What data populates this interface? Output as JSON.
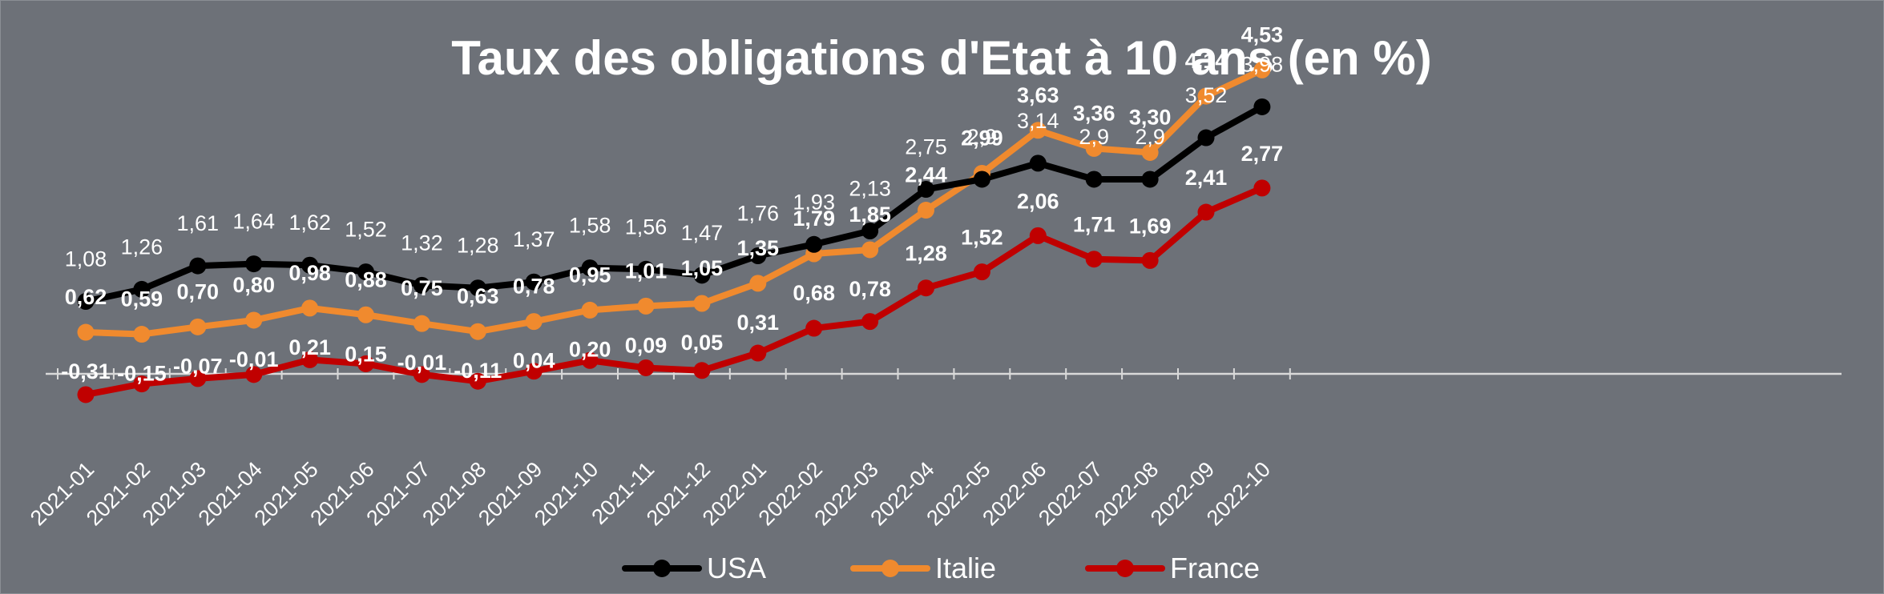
{
  "chart_data": {
    "type": "line",
    "title": "Taux des obligations d'Etat à 10 ans (en %)",
    "xlabel": "",
    "ylabel": "",
    "ylim": [
      -1.2,
      5.5
    ],
    "grid": false,
    "legend_position": "bottom",
    "categories": [
      "2021-01",
      "2021-02",
      "2021-03",
      "2021-04",
      "2021-05",
      "2021-06",
      "2021-07",
      "2021-08",
      "2021-09",
      "2021-10",
      "2021-11",
      "2021-12",
      "2022-01",
      "2022-02",
      "2022-03",
      "2022-04",
      "2022-05",
      "2022-06",
      "2022-07",
      "2022-08",
      "2022-09",
      "2022-10"
    ],
    "series": [
      {
        "name": "USA",
        "color": "#000000",
        "values": [
          1.08,
          1.26,
          1.61,
          1.64,
          1.62,
          1.52,
          1.32,
          1.28,
          1.37,
          1.58,
          1.56,
          1.47,
          1.76,
          1.93,
          2.13,
          2.75,
          2.9,
          3.14,
          2.9,
          2.9,
          3.52,
          3.98
        ],
        "labels": [
          "1,08",
          "1,26",
          "1,61",
          "1,64",
          "1,62",
          "1,52",
          "1,32",
          "1,28",
          "1,37",
          "1,58",
          "1,56",
          "1,47",
          "1,76",
          "1,93",
          "2,13",
          "2,75",
          "2,9",
          "3,14",
          "2,9",
          "2,9",
          "3,52",
          "3,98"
        ]
      },
      {
        "name": "Italie",
        "color": "#f08a2e",
        "values": [
          0.62,
          0.59,
          0.7,
          0.8,
          0.98,
          0.88,
          0.75,
          0.63,
          0.78,
          0.95,
          1.01,
          1.05,
          1.35,
          1.79,
          1.85,
          2.44,
          2.99,
          3.63,
          3.36,
          3.3,
          4.14,
          4.53
        ],
        "labels": [
          "0,62",
          "0,59",
          "0,70",
          "0,80",
          "0,98",
          "0,88",
          "0,75",
          "0,63",
          "0,78",
          "0,95",
          "1,01",
          "1,05",
          "1,35",
          "1,79",
          "1,85",
          "2,44",
          "2,99",
          "3,63",
          "3,36",
          "3,30",
          "4,14",
          "4,53"
        ]
      },
      {
        "name": "France",
        "color": "#c00000",
        "values": [
          -0.31,
          -0.15,
          -0.07,
          -0.01,
          0.21,
          0.15,
          -0.01,
          -0.11,
          0.04,
          0.2,
          0.09,
          0.05,
          0.31,
          0.68,
          0.78,
          1.28,
          1.52,
          2.06,
          1.71,
          1.69,
          2.41,
          2.77
        ],
        "labels": [
          "-0,31",
          "-0,15",
          "-0,07",
          "-0,01",
          "0,21",
          "0,15",
          "-0,01",
          "-0,11",
          "0,04",
          "0,20",
          "0,09",
          "0,05",
          "0,31",
          "0,68",
          "0,78",
          "1,28",
          "1,52",
          "2,06",
          "1,71",
          "1,69",
          "2,41",
          "2,77"
        ]
      }
    ]
  }
}
